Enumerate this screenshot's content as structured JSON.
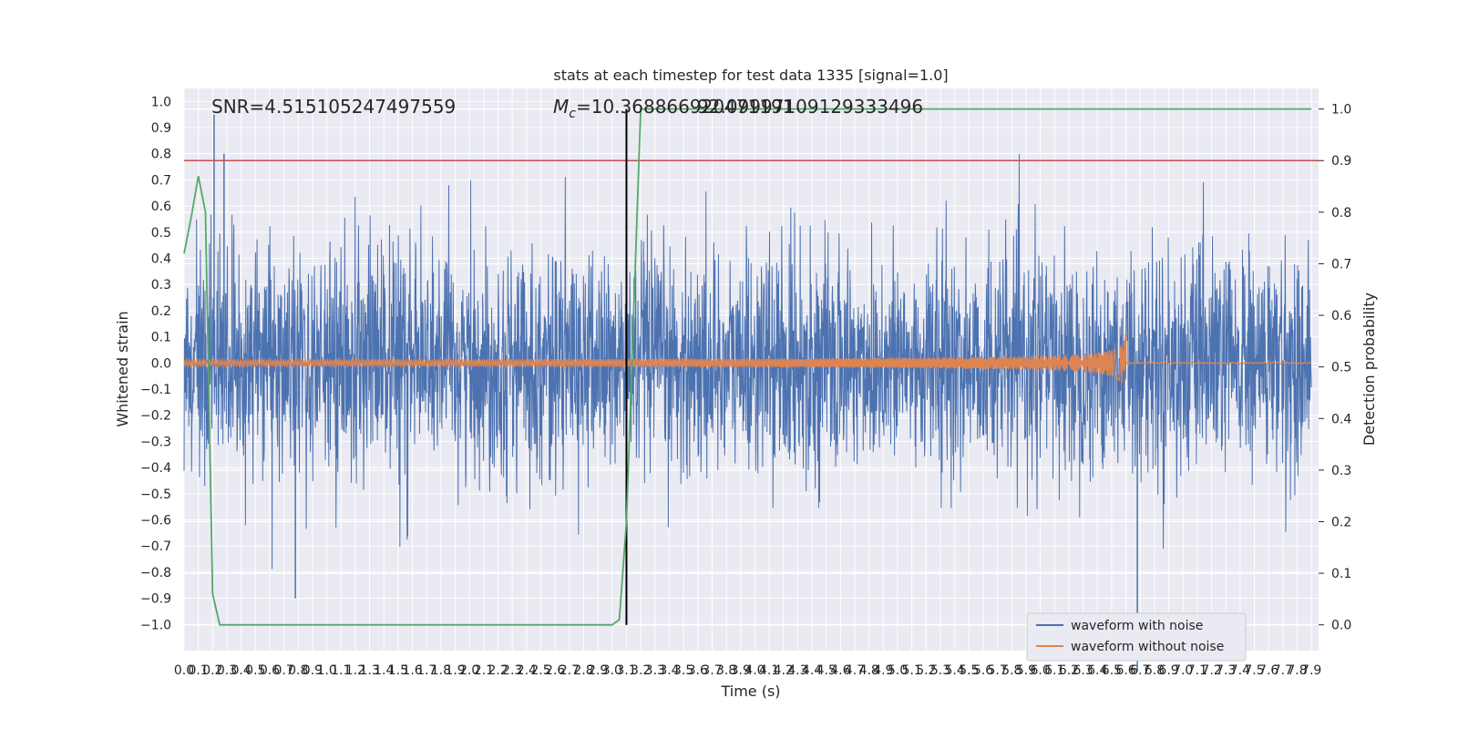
{
  "chart_data": {
    "type": "line",
    "title": "stats at each timestep for test data 1335 [signal=1.0]",
    "xlabel": "Time (s)",
    "ylabel": "Whitened strain",
    "ylabel_right": "Detection probability",
    "xlim": [
      0,
      7.95
    ],
    "ylim": [
      -1.1,
      1.05
    ],
    "ylim_right": [
      -0.05,
      1.04
    ],
    "x_ticks": [
      "0.0",
      "0.1",
      "0.2",
      "0.3",
      "0.4",
      "0.5",
      "0.6",
      "0.7",
      "0.8",
      "0.9",
      "1.0",
      "1.1",
      "1.2",
      "1.3",
      "1.4",
      "1.5",
      "1.6",
      "1.7",
      "1.8",
      "1.9",
      "2.0",
      "2.1",
      "2.2",
      "2.3",
      "2.4",
      "2.5",
      "2.6",
      "2.7",
      "2.8",
      "2.9",
      "3.0",
      "3.1",
      "3.2",
      "3.3",
      "3.4",
      "3.5",
      "3.6",
      "3.7",
      "3.8",
      "3.9",
      "4.0",
      "4.1",
      "4.2",
      "4.3",
      "4.4",
      "4.5",
      "4.6",
      "4.7",
      "4.8",
      "4.9",
      "5.0",
      "5.1",
      "5.2",
      "5.3",
      "5.4",
      "5.5",
      "5.6",
      "5.7",
      "5.8",
      "5.9",
      "6.0",
      "6.1",
      "6.2",
      "6.3",
      "6.4",
      "6.5",
      "6.6",
      "6.7",
      "6.8",
      "6.9",
      "7.0",
      "7.1",
      "7.2",
      "7.3",
      "7.4",
      "7.5",
      "7.6",
      "7.7",
      "7.8",
      "7.9"
    ],
    "y_ticks": [
      "1.0",
      "0.9",
      "0.8",
      "0.7",
      "0.6",
      "0.5",
      "0.4",
      "0.3",
      "0.2",
      "0.1",
      "0.0",
      "−0.1",
      "−0.2",
      "−0.3",
      "−0.4",
      "−0.5",
      "−0.6",
      "−0.7",
      "−0.8",
      "−0.9",
      "−1.0"
    ],
    "y_right_ticks": [
      "1.0",
      "0.9",
      "0.8",
      "0.7",
      "0.6",
      "0.5",
      "0.4",
      "0.3",
      "0.2",
      "0.1",
      "0.0"
    ],
    "annotations": {
      "snr": "SNR=4.515105247497559",
      "mc": "=10.368866920471191",
      "mc_prefix": "M",
      "mc_sub": "c",
      "overlap": "92.09997109129333496"
    },
    "threshold": 0.9,
    "event_time": 3.1,
    "series": [
      {
        "name": "waveform with noise",
        "color": "#4c72b0",
        "noise_amplitude": 0.38,
        "peak_max": 0.95,
        "peak_min": -1.18
      },
      {
        "name": "waveform without noise",
        "color": "#dd8452",
        "chirp_start_amplitude": 0.012,
        "chirp_peak_amplitude": 0.2,
        "merger_time": 6.6
      },
      {
        "name": "detection probability",
        "color": "#55a868",
        "x": [
          0.0,
          0.05,
          0.1,
          0.15,
          0.2,
          0.25,
          3.0,
          3.05,
          3.1,
          3.15,
          3.2,
          7.9
        ],
        "values": [
          0.72,
          0.79,
          0.87,
          0.8,
          0.06,
          0.0,
          0.0,
          0.01,
          0.2,
          0.6,
          1.0,
          1.0
        ]
      }
    ],
    "threshold_color": "#c44e52",
    "event_line_color": "#000000",
    "background": "#eaeaf2",
    "grid": true,
    "legend_position": "lower-right"
  }
}
